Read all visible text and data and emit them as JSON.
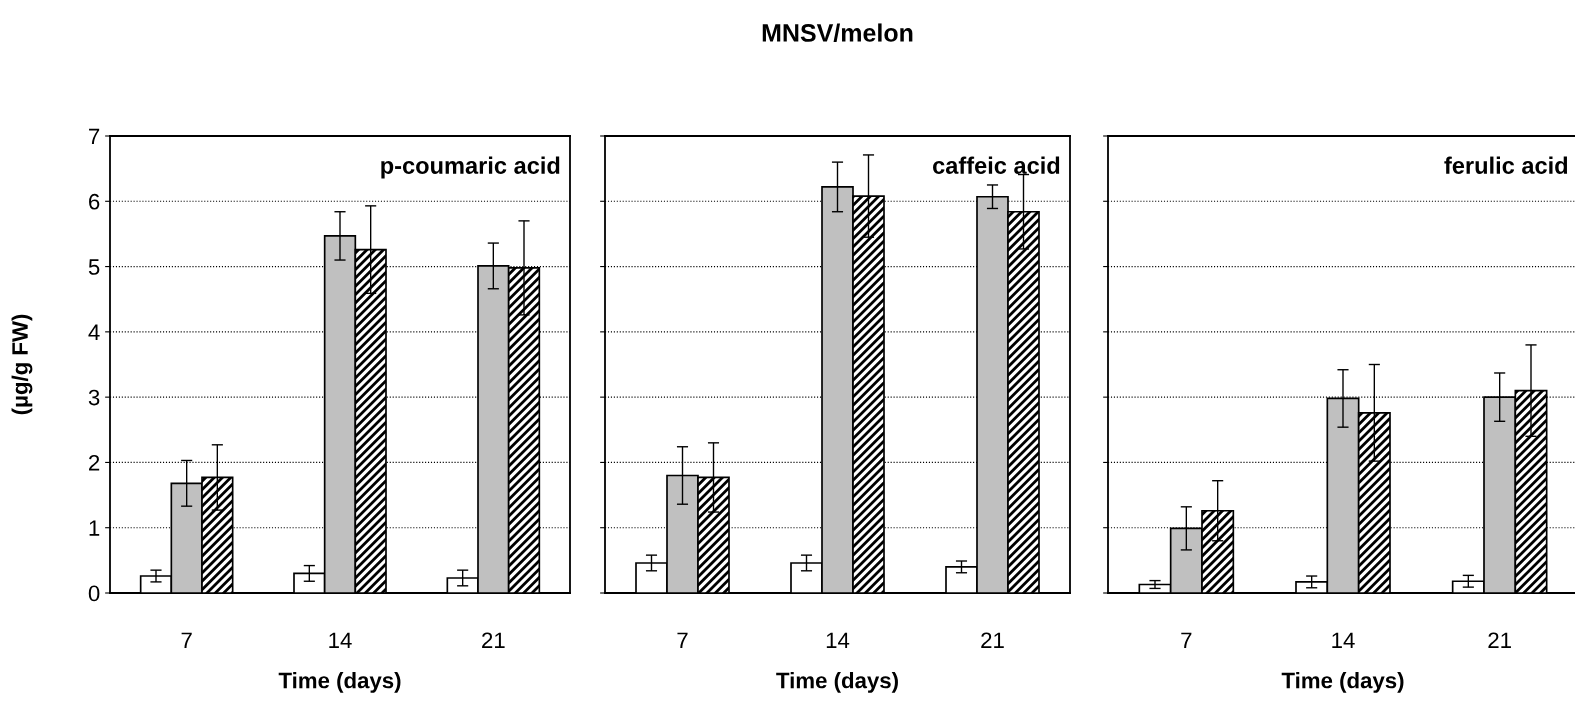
{
  "chart_data": [
    {
      "type": "bar",
      "xlabel": "Time (days)",
      "ylabel": "(µg/g FW)",
      "annotations": [
        "p-coumaric acid"
      ],
      "categories": [
        "7",
        "14",
        "21"
      ],
      "ylim": [
        0,
        7
      ],
      "yticks": [
        0,
        1,
        2,
        3,
        4,
        5,
        6,
        7
      ],
      "grid": "y",
      "legend": false,
      "series": [
        {
          "color": "#ffffff",
          "values": [
            0.26,
            0.3,
            0.23
          ],
          "errors": [
            0.09,
            0.12,
            0.12
          ]
        },
        {
          "color": "#c0c0c0",
          "values": [
            1.68,
            5.47,
            5.01
          ],
          "errors": [
            0.35,
            0.37,
            0.35
          ]
        },
        {
          "color": "#000000",
          "values": [
            1.77,
            5.26,
            4.98
          ],
          "errors": [
            0.5,
            0.67,
            0.72
          ]
        }
      ]
    },
    {
      "type": "bar",
      "title": "MNSV/melon",
      "xlabel": "Time (days)",
      "annotations": [
        "caffeic acid"
      ],
      "categories": [
        "7",
        "14",
        "21"
      ],
      "ylim": [
        0,
        7
      ],
      "yticks": [
        0,
        1,
        2,
        3,
        4,
        5,
        6,
        7
      ],
      "tick_labels": "x",
      "grid": "y",
      "legend": false,
      "series": [
        {
          "color": "#ffffff",
          "values": [
            0.46,
            0.46,
            0.4
          ],
          "errors": [
            0.12,
            0.12,
            0.09
          ]
        },
        {
          "color": "#c0c0c0",
          "values": [
            1.8,
            6.22,
            6.07
          ],
          "errors": [
            0.44,
            0.38,
            0.18
          ]
        },
        {
          "color": "#000000",
          "values": [
            1.77,
            6.08,
            5.84
          ],
          "errors": [
            0.53,
            0.63,
            0.57
          ]
        }
      ]
    },
    {
      "type": "bar",
      "xlabel": "Time (days)",
      "annotations": [
        "ferulic acid"
      ],
      "categories": [
        "7",
        "14",
        "21"
      ],
      "ylim": [
        0,
        7
      ],
      "yticks": [
        0,
        1,
        2,
        3,
        4,
        5,
        6,
        7
      ],
      "tick_labels": "x",
      "grid": "y",
      "legend": false,
      "series": [
        {
          "color": "#ffffff",
          "values": [
            0.13,
            0.17,
            0.18
          ],
          "errors": [
            0.06,
            0.09,
            0.09
          ]
        },
        {
          "color": "#c0c0c0",
          "values": [
            0.99,
            2.98,
            3.0
          ],
          "errors": [
            0.33,
            0.44,
            0.37
          ]
        },
        {
          "color": "#000000",
          "values": [
            1.26,
            2.76,
            3.1
          ],
          "errors": [
            0.46,
            0.74,
            0.7
          ]
        }
      ]
    }
  ]
}
